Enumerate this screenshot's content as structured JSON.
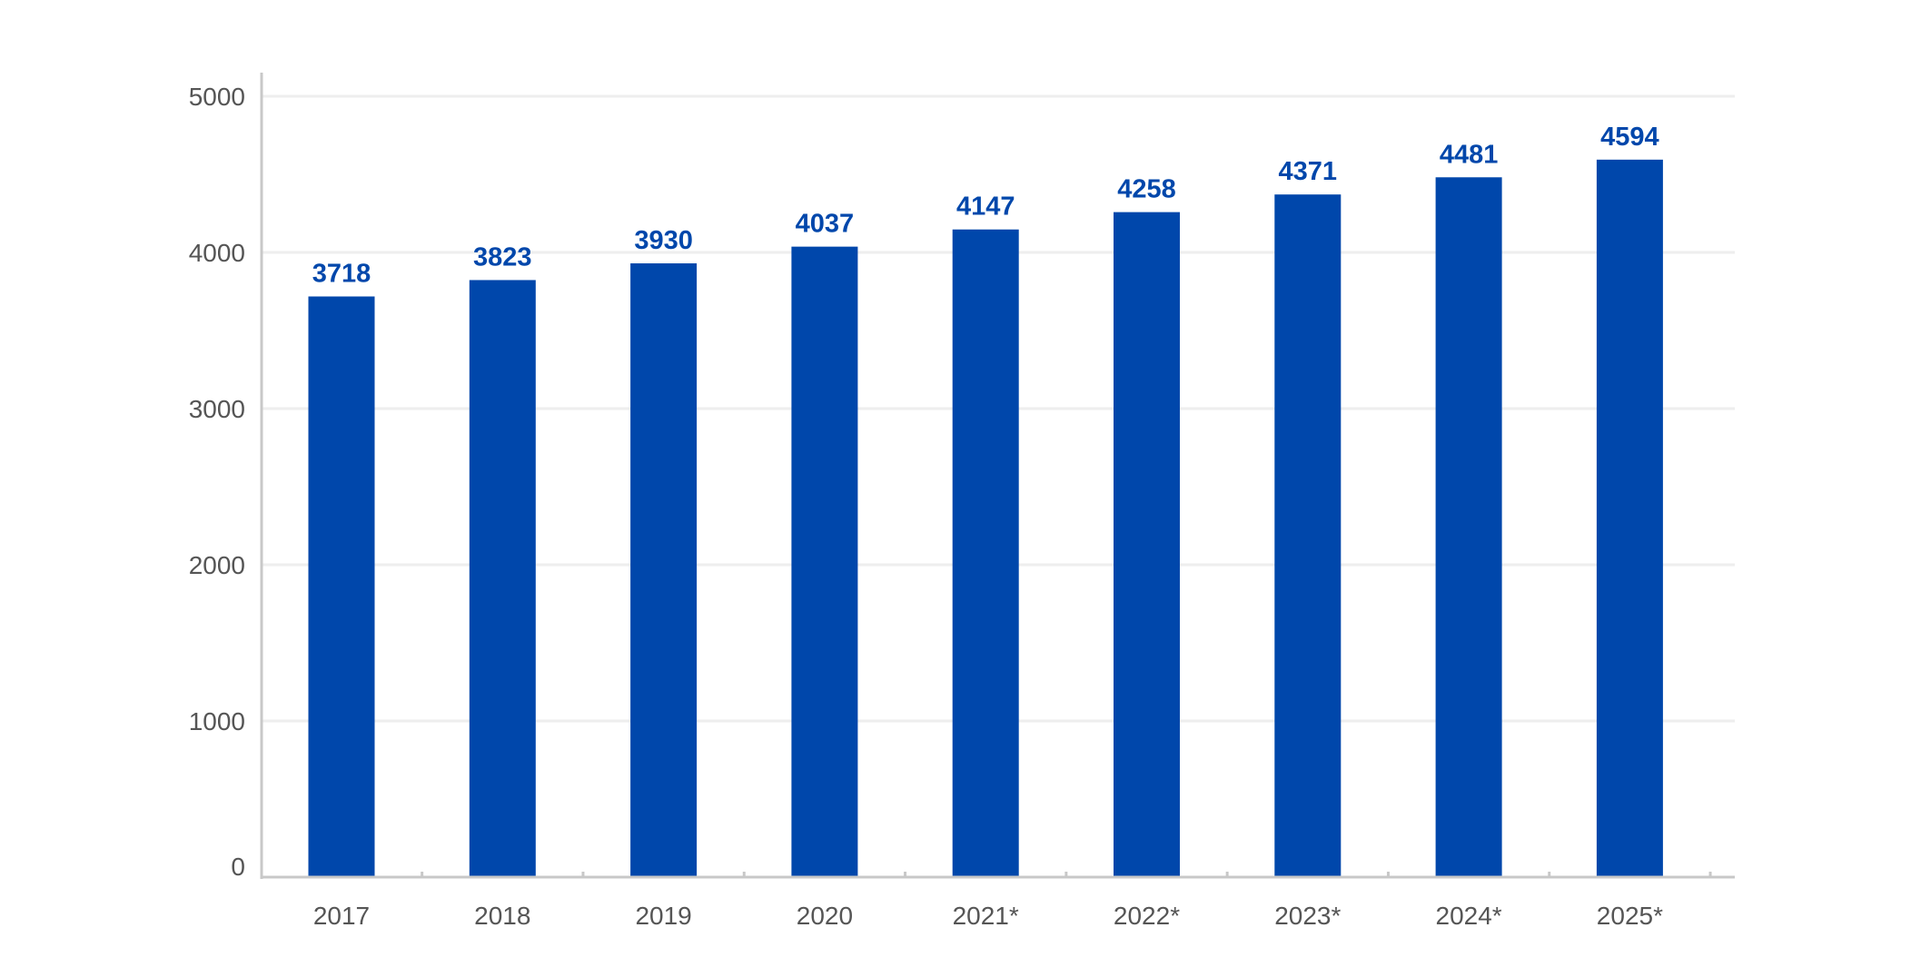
{
  "chart_data": {
    "type": "bar",
    "categories": [
      "2017",
      "2018",
      "2019",
      "2020",
      "2021*",
      "2022*",
      "2023*",
      "2024*",
      "2025*"
    ],
    "values": [
      3718,
      3823,
      3930,
      4037,
      4147,
      4258,
      4371,
      4481,
      4594
    ],
    "title": "",
    "xlabel": "",
    "ylabel": "",
    "ylim": [
      0,
      5000
    ],
    "yticks": [
      0,
      1000,
      2000,
      3000,
      4000,
      5000
    ],
    "grid": true,
    "data_labels": true,
    "bar_color": "#0047AB",
    "label_color": "#0047AB",
    "axis_text_color": "#555555"
  }
}
